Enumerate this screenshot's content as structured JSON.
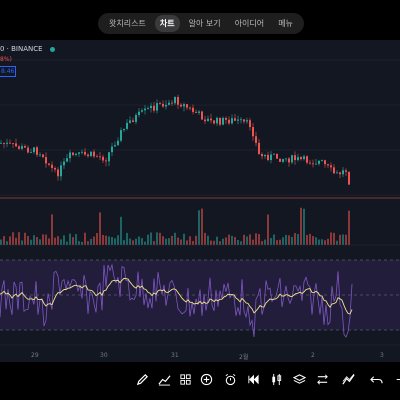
{
  "tabs": [
    {
      "label": "왓치리스트",
      "active": false
    },
    {
      "label": "차트",
      "active": true
    },
    {
      "label": "알아 보기",
      "active": false
    },
    {
      "label": "아이디어",
      "active": false
    },
    {
      "label": "메뉴",
      "active": false
    }
  ],
  "symbol": {
    "text": "0 · BINANCE",
    "change_text": "8%)",
    "price_box": "8.46"
  },
  "xaxis": [
    "29",
    "30",
    "31",
    "2월",
    "2",
    "3"
  ],
  "colors": {
    "background": "#131722",
    "up": "#26a69a",
    "down": "#ef5350",
    "rsi_line": "#7e57c2",
    "rsi_ma": "#f0e68c",
    "rsi_band": "#2a2146",
    "price_line": "#ef5350",
    "accent": "#2962ff"
  },
  "toolbar_icons": [
    "pencil-icon",
    "trend-line-icon",
    "pattern-icon",
    "add-circle-icon",
    "alarm-icon",
    "replay-icon",
    "layers-icon",
    "compare-icon",
    "indicator-icon",
    "undo-icon",
    "redo-icon"
  ]
}
